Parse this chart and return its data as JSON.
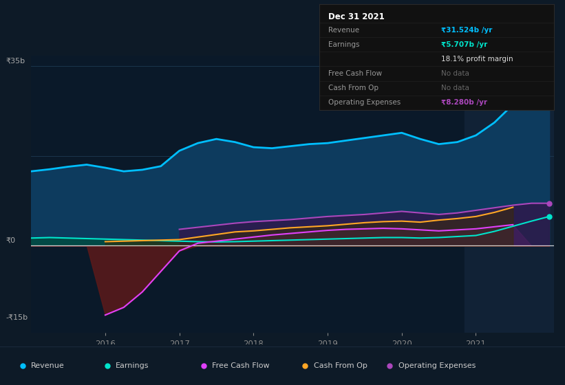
{
  "bg_color": "#0d1a27",
  "plot_bg_color": "#0a1929",
  "highlight_bg": "#112236",
  "ylabel_35b": "₹35b",
  "ylabel_0": "₹0",
  "ylabel_neg15b": "-₹15b",
  "years": [
    2015.0,
    2015.25,
    2015.5,
    2015.75,
    2016.0,
    2016.25,
    2016.5,
    2016.75,
    2017.0,
    2017.25,
    2017.5,
    2017.75,
    2018.0,
    2018.25,
    2018.5,
    2018.75,
    2019.0,
    2019.25,
    2019.5,
    2019.75,
    2020.0,
    2020.25,
    2020.5,
    2020.75,
    2021.0,
    2021.25,
    2021.5,
    2021.75,
    2021.99
  ],
  "revenue": [
    14500,
    14900,
    15400,
    15800,
    15200,
    14500,
    14800,
    15500,
    18500,
    20000,
    20800,
    20200,
    19200,
    19000,
    19400,
    19800,
    20000,
    20500,
    21000,
    21500,
    22000,
    20800,
    19800,
    20200,
    21500,
    24000,
    27500,
    30500,
    31524
  ],
  "earnings": [
    1500,
    1600,
    1500,
    1400,
    1300,
    1200,
    1100,
    1000,
    900,
    800,
    750,
    800,
    900,
    1000,
    1100,
    1200,
    1300,
    1400,
    1500,
    1600,
    1600,
    1500,
    1600,
    1800,
    2000,
    2800,
    3800,
    4800,
    5707
  ],
  "free_cash_flow": [
    null,
    null,
    null,
    null,
    -13500,
    -12000,
    -9000,
    -5000,
    -1000,
    500,
    900,
    1300,
    1700,
    2100,
    2400,
    2700,
    3000,
    3200,
    3300,
    3400,
    3300,
    3100,
    2900,
    3100,
    3300,
    3700,
    4100,
    null,
    null
  ],
  "cash_from_op": [
    null,
    null,
    null,
    null,
    800,
    900,
    1000,
    1100,
    1200,
    1700,
    2200,
    2700,
    2900,
    3200,
    3500,
    3700,
    3900,
    4200,
    4500,
    4700,
    4800,
    4600,
    5000,
    5300,
    5700,
    6500,
    7500,
    null,
    null
  ],
  "operating_expenses": [
    null,
    null,
    null,
    null,
    null,
    null,
    null,
    null,
    3200,
    3600,
    4000,
    4400,
    4700,
    4900,
    5100,
    5400,
    5700,
    5900,
    6100,
    6400,
    6700,
    6400,
    6100,
    6400,
    6900,
    7400,
    7900,
    8280,
    8280
  ],
  "revenue_color": "#00bfff",
  "earnings_color": "#00e5cc",
  "free_cash_flow_color": "#e040fb",
  "cash_from_op_color": "#ffa726",
  "operating_expenses_color": "#ab47bc",
  "revenue_fill": "#0d3b5e",
  "earnings_fill": "#004d40",
  "free_cash_flow_fill_pos": "#4a2060",
  "free_cash_flow_fill_neg": "#5c1a1a",
  "operating_expenses_fill": "#2d1b4e",
  "xlim": [
    2015.0,
    2022.05
  ],
  "ylim": [
    -17000,
    37000
  ],
  "x_ticks": [
    2016,
    2017,
    2018,
    2019,
    2020,
    2021
  ],
  "highlight_start": 2020.85,
  "highlight_end": 2022.05,
  "legend_items": [
    {
      "label": "Revenue",
      "color": "#00bfff"
    },
    {
      "label": "Earnings",
      "color": "#00e5cc"
    },
    {
      "label": "Free Cash Flow",
      "color": "#e040fb"
    },
    {
      "label": "Cash From Op",
      "color": "#ffa726"
    },
    {
      "label": "Operating Expenses",
      "color": "#ab47bc"
    }
  ],
  "table_data": {
    "header": "Dec 31 2021",
    "rows": [
      {
        "label": "Revenue",
        "value": "₹31.524b /yr",
        "value_color": "#00bfff"
      },
      {
        "label": "Earnings",
        "value": "₹5.707b /yr",
        "value_color": "#00e5cc"
      },
      {
        "label": "",
        "value": "18.1% profit margin",
        "value_color": "#dddddd"
      },
      {
        "label": "Free Cash Flow",
        "value": "No data",
        "value_color": "#666666"
      },
      {
        "label": "Cash From Op",
        "value": "No data",
        "value_color": "#666666"
      },
      {
        "label": "Operating Expenses",
        "value": "₹8.280b /yr",
        "value_color": "#ab47bc"
      }
    ]
  }
}
